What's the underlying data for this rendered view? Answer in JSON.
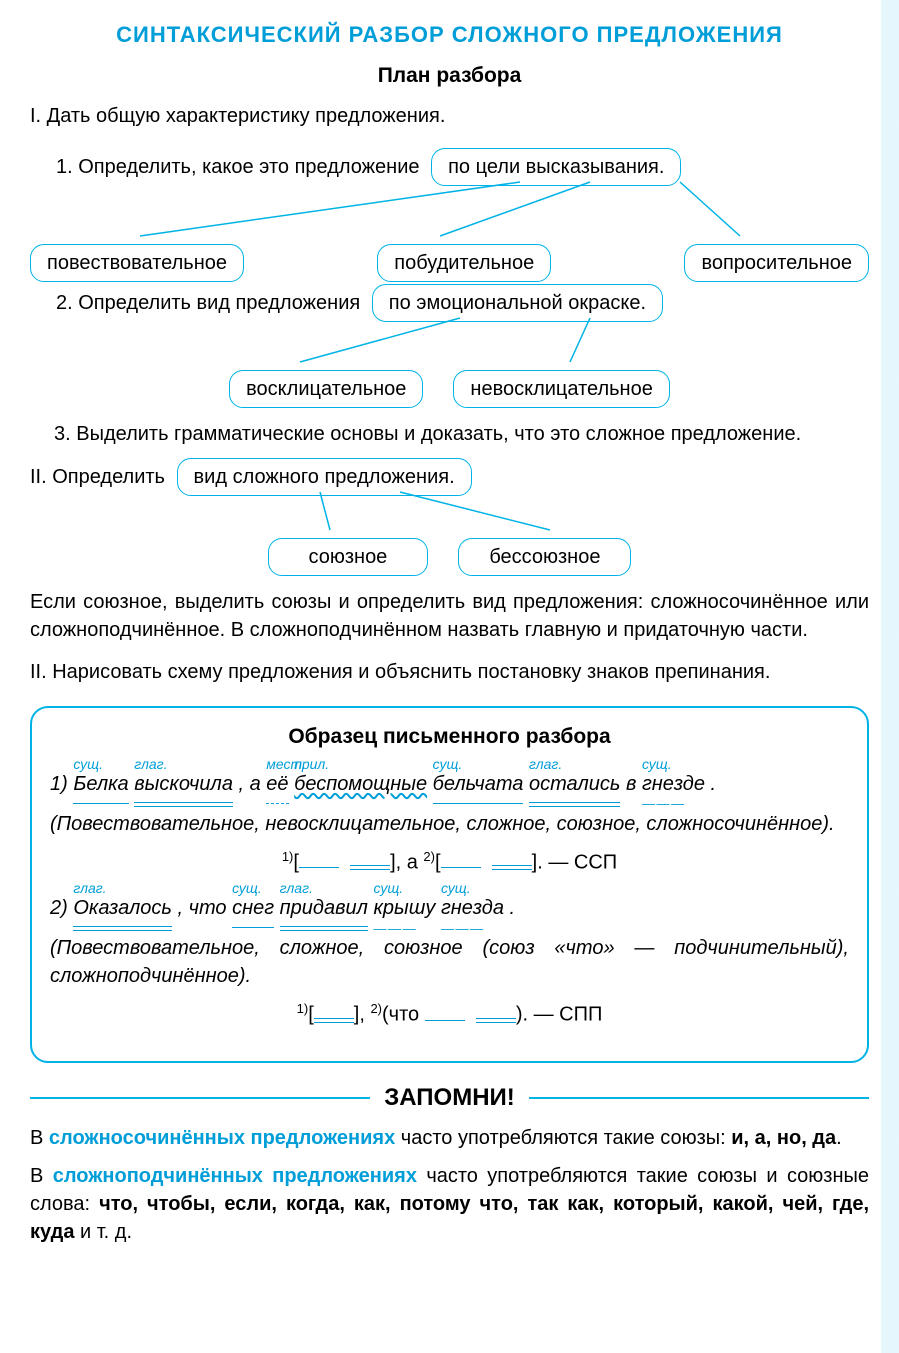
{
  "colors": {
    "accent": "#009ed8",
    "border": "#00b3e6",
    "text": "#000000",
    "bg": "#ffffff"
  },
  "title": "СИНТАКСИЧЕСКИЙ РАЗБОР СЛОЖНОГО ПРЕДЛОЖЕНИЯ",
  "subtitle": "План разбора",
  "s1": {
    "heading": "I.  Дать общую характеристику предложения.",
    "item1_lead": "1. Определить, какое это предложение",
    "item1_bubble": "по цели высказывания.",
    "opts1": [
      "повествовательное",
      "побудительное",
      "вопросительное"
    ],
    "item2_lead": "2. Определить вид предложения",
    "item2_bubble": "по эмоциональной окраске.",
    "opts2": [
      "восклицательное",
      "невосклицательное"
    ],
    "item3": "3. Выделить грамматические основы и доказать, что это сложное предложение."
  },
  "s2": {
    "lead": "II.  Определить",
    "bubble": "вид сложного предложения.",
    "opts": [
      "союзное",
      "бессоюзное"
    ],
    "para": "Если союзное, выделить союзы и определить вид предложения: сложносочинённое или сложноподчинённое. В сложноподчинённом назвать главную и придаточную части."
  },
  "s3": "II. Нарисовать схему предложения и объяснить постановку знаков препинания.",
  "example": {
    "title": "Образец письменного разбора",
    "sent1": {
      "num": "1)",
      "parts": [
        {
          "pos": "сущ.",
          "text": "Белка",
          "cls": "subj"
        },
        {
          "pos": "глаг.",
          "text": "выскочила",
          "cls": "pred"
        },
        {
          "text": ", а "
        },
        {
          "pos": "мест.",
          "text": "её",
          "cls": "dash-u"
        },
        {
          "pos": "прил.",
          "text": "беспомощные",
          "cls": "wavy"
        },
        {
          "pos": "сущ.",
          "text": "бельчата",
          "cls": "subj"
        },
        {
          "pos": "глаг.",
          "text": "остались",
          "cls": "pred"
        },
        {
          "text": " в "
        },
        {
          "pos": "сущ.",
          "text": "гнезде",
          "cls": "dash-dash"
        },
        {
          "text": "."
        }
      ],
      "note": "(Повествовательное, невосклицательное, сложное, союзное, сложносочинённое).",
      "schema_pre1": "1)",
      "schema_mid": ", а ",
      "schema_pre2": "2)",
      "schema_end": ". — ССП"
    },
    "sent2": {
      "num": "2)",
      "parts": [
        {
          "pos": "глаг.",
          "text": "Оказалось",
          "cls": "pred"
        },
        {
          "text": ", что "
        },
        {
          "pos": "сущ.",
          "text": "снег",
          "cls": "subj"
        },
        {
          "pos": "глаг.",
          "text": "придавил",
          "cls": "pred"
        },
        {
          "pos": "сущ.",
          "text": "крышу",
          "cls": "dash-dash"
        },
        {
          "pos": "сущ.",
          "text": "гнезда",
          "cls": "dash-dash"
        },
        {
          "text": "."
        }
      ],
      "note": "(Повествовательное, сложное, союзное (союз «что» — подчинительный), сложноподчинённое).",
      "schema_pre1": "1)",
      "schema_mid": ", ",
      "schema_pre2": "2)",
      "schema_chto": "(что ",
      "schema_end": "). — СПП"
    }
  },
  "remember": {
    "title": "ЗАПОМНИ!",
    "p1_a": "В ",
    "p1_b": "сложносочинённых предложениях",
    "p1_c": " часто употребляются такие союзы: ",
    "p1_list": "и, а, но, да",
    "p2_a": "В ",
    "p2_b": "сложноподчинённых предложениях",
    "p2_c": " часто употребляются такие союзы и союзные слова: ",
    "p2_list": "что, чтобы, если, когда, как, потому что, так как, который, какой, чей, где, куда",
    "p2_end": " и т. д."
  }
}
